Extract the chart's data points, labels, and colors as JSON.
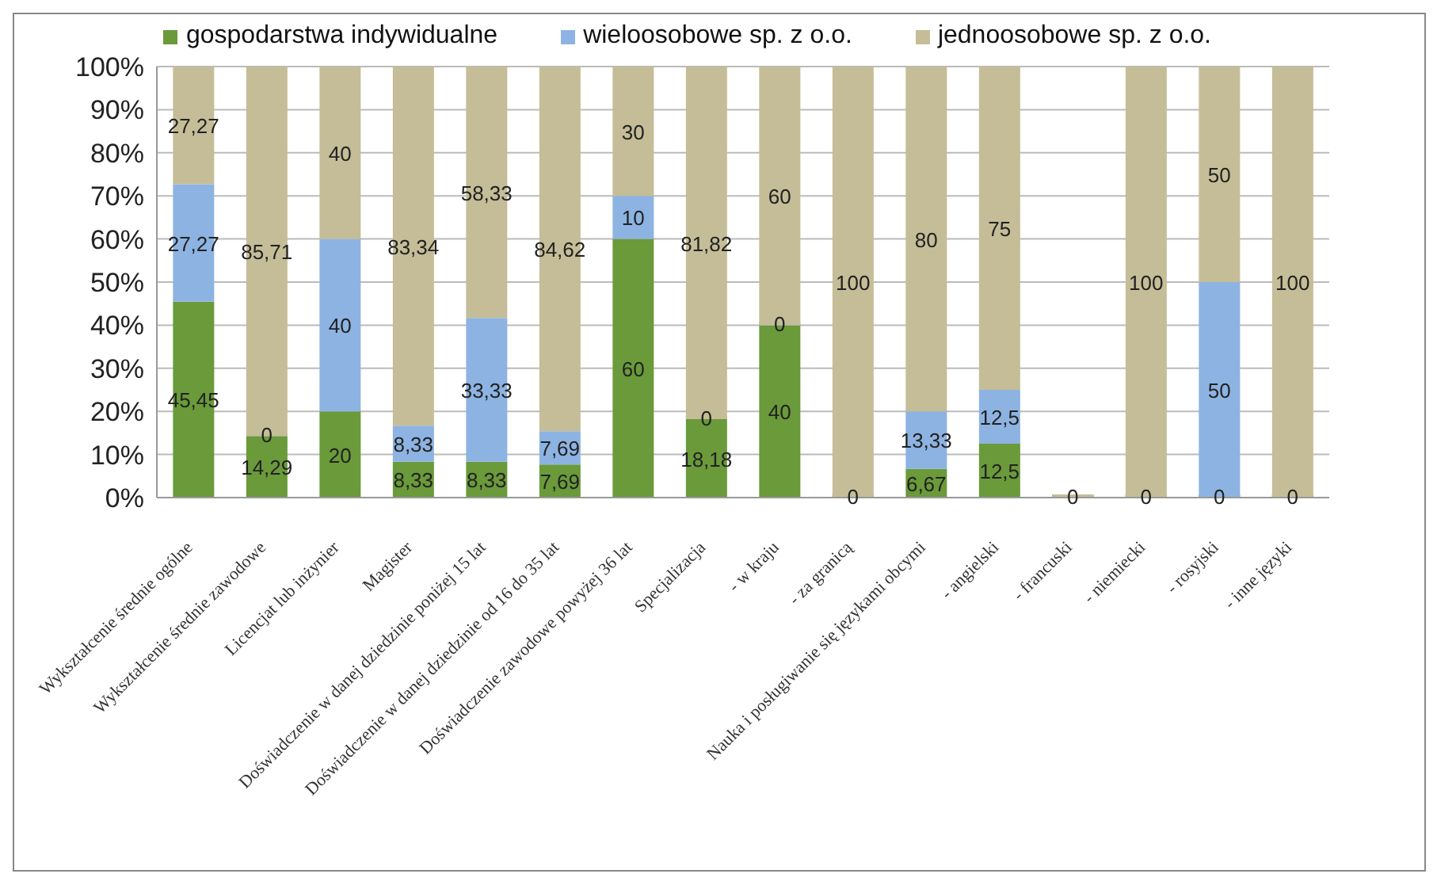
{
  "chart_data": {
    "type": "bar",
    "stacked": true,
    "legend": "top",
    "grid": "y",
    "categories": [
      "Wykształcenie średnie ogólne",
      "Wykształcenie średnie zawodowe",
      "Licencjat lub inżynier",
      "Magister",
      "Doświadczenie w danej dziedzinie poniżej 15 lat",
      "Doświadczenie w danej dziedzinie od 16 do 35 lat",
      "Doświadczenie zawodowe powyżej 36 lat",
      "Specjalizacja",
      "- w kraju",
      "- za granicą",
      "Nauka i posługiwanie się językami obcymi",
      "- angielski",
      "- francuski",
      "- niemiecki",
      "- rosyjski",
      "- inne języki"
    ],
    "ylim": [
      0,
      100
    ],
    "yticks": [
      {
        "value": 0,
        "label": "0%"
      },
      {
        "value": 10,
        "label": "10%"
      },
      {
        "value": 20,
        "label": "20%"
      },
      {
        "value": 30,
        "label": "30%"
      },
      {
        "value": 40,
        "label": "40%"
      },
      {
        "value": 50,
        "label": "50%"
      },
      {
        "value": 60,
        "label": "60%"
      },
      {
        "value": 70,
        "label": "70%"
      },
      {
        "value": 80,
        "label": "80%"
      },
      {
        "value": 90,
        "label": "90%"
      },
      {
        "value": 100,
        "label": "100%"
      }
    ],
    "series": [
      {
        "name": "gospodarstwa indywidualne",
        "color": "#6a9a3a",
        "values": [
          45.45,
          14.29,
          20,
          8.33,
          8.33,
          7.69,
          60,
          18.18,
          40,
          0,
          6.67,
          12.5,
          0,
          0,
          0,
          0
        ],
        "value_labels": [
          "45,45",
          "14,29",
          "20",
          "8,33",
          "8,33",
          "7,69",
          "60",
          "18,18",
          "40",
          "0",
          "6,67",
          "12,5",
          "0",
          "0",
          "0",
          "0"
        ]
      },
      {
        "name": "wieloosobowe sp. z o.o.",
        "color": "#8db3e2",
        "values": [
          27.27,
          0,
          40,
          8.33,
          33.33,
          7.69,
          10,
          0,
          0,
          0,
          13.33,
          12.5,
          null,
          0,
          50,
          0
        ],
        "value_labels": [
          "27,27",
          "0",
          "40",
          "8,33",
          "33,33",
          "7,69",
          "10",
          "0",
          "0",
          null,
          "13,33",
          "12,5",
          null,
          null,
          "50",
          null
        ]
      },
      {
        "name": "jednoosobowe sp. z o.o.",
        "color": "#c4bd97",
        "values": [
          27.27,
          85.71,
          40,
          83.34,
          58.33,
          84.62,
          30,
          81.82,
          60,
          100,
          80,
          75,
          null,
          100,
          50,
          100
        ],
        "value_labels": [
          "27,27",
          "85,71",
          "40",
          "83,34",
          "58,33",
          "84,62",
          "30",
          "81,82",
          "60",
          "100",
          "80",
          "75",
          null,
          "100",
          "50",
          "100"
        ]
      }
    ]
  }
}
